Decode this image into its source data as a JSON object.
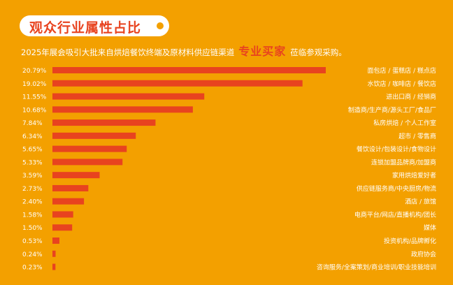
{
  "header": {
    "title": "观众行业属性占比",
    "subtitle_before": "2025年展会吸引大批来自烘焙餐饮终端及原材料供应链渠道",
    "subtitle_highlight": "专业买家",
    "subtitle_after": "莅临参观采购。"
  },
  "colors": {
    "background": "#f3a000",
    "bar": "#e8431f",
    "accent": "#e8431f",
    "text": "#ffffff"
  },
  "chart_data": {
    "type": "bar",
    "orientation": "horizontal",
    "grid": false,
    "xlim": [
      0,
      21
    ],
    "categories": [
      "面包店 / 蛋糕店 / 糕点店",
      "水饮店 / 咖啡店 / 餐饮店",
      "进出口商 / 经销商",
      "制造商/生产商/源头工厂/食品厂",
      "私房烘焙 / 个人工作室",
      "超市 / 零售商",
      "餐饮设计/包装设计/食物设计",
      "连锁加盟品牌商/加盟商",
      "家用烘焙爱好者",
      "供应链服务商/中央厨房/物流",
      "酒店 / 旅馆",
      "电商平台/网店/直播机构/团长",
      "媒体",
      "投资机构/品牌孵化",
      "政府协会",
      "咨询服务/全案策划/商业培训/职业技能培训"
    ],
    "values": [
      20.79,
      19.02,
      11.55,
      10.68,
      7.84,
      6.34,
      5.65,
      5.33,
      3.59,
      2.73,
      2.4,
      1.58,
      1.5,
      0.53,
      0.24,
      0.23
    ],
    "value_labels": [
      "20.79%",
      "19.02%",
      "11.55%",
      "10.68%",
      "7.84%",
      "6.34%",
      "5.65%",
      "5.33%",
      "3.59%",
      "2.73%",
      "2.40%",
      "1.58%",
      "1.50%",
      "0.53%",
      "0.24%",
      "0.23%"
    ]
  }
}
